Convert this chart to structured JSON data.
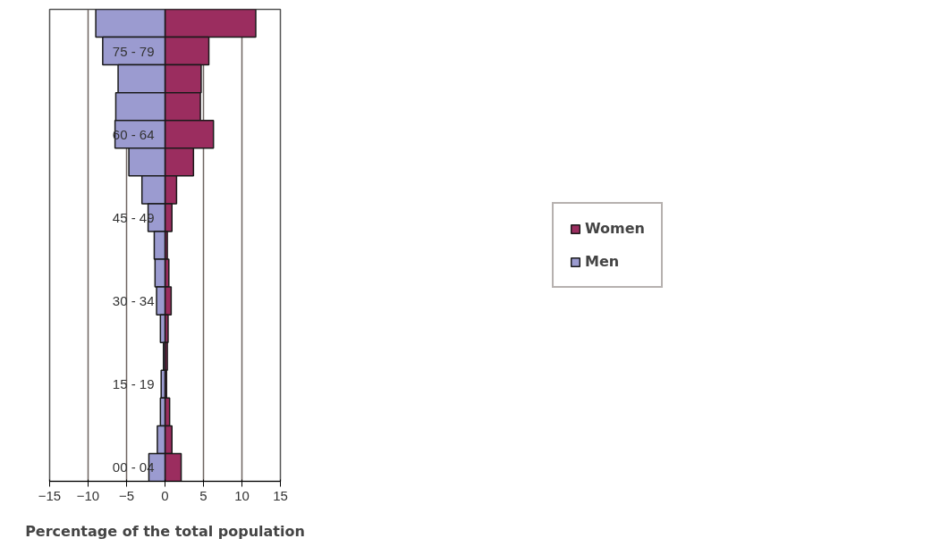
{
  "chart_data": {
    "type": "bar",
    "orientation": "horizontal",
    "stacked": true,
    "xlabel": "Percentage of the total population",
    "categories": [
      null,
      "75 - 79",
      null,
      null,
      "60 - 64",
      null,
      null,
      "45 - 49",
      null,
      null,
      "30 - 34",
      null,
      null,
      "15 - 19",
      null,
      null,
      "00 - 04"
    ],
    "series": [
      {
        "name": "Women",
        "color": "#9b2d5f",
        "values": [
          11.8,
          5.7,
          4.7,
          4.6,
          6.3,
          3.7,
          1.5,
          0.9,
          0.3,
          0.5,
          0.8,
          0.4,
          0.3,
          0.2,
          0.6,
          0.9,
          2.1
        ]
      },
      {
        "name": "Men",
        "color": "#9b9bd0",
        "values": [
          -9.0,
          -8.1,
          -6.1,
          -6.4,
          -6.5,
          -4.7,
          -3.0,
          -2.2,
          -1.4,
          -1.3,
          -1.1,
          -0.6,
          -0.2,
          -0.5,
          -0.6,
          -1.0,
          -2.1
        ]
      }
    ],
    "xlim": [
      -15,
      15
    ],
    "xticks": [
      -15,
      -10,
      -5,
      0,
      5,
      10,
      15
    ],
    "grid": "x",
    "legend": "right"
  }
}
